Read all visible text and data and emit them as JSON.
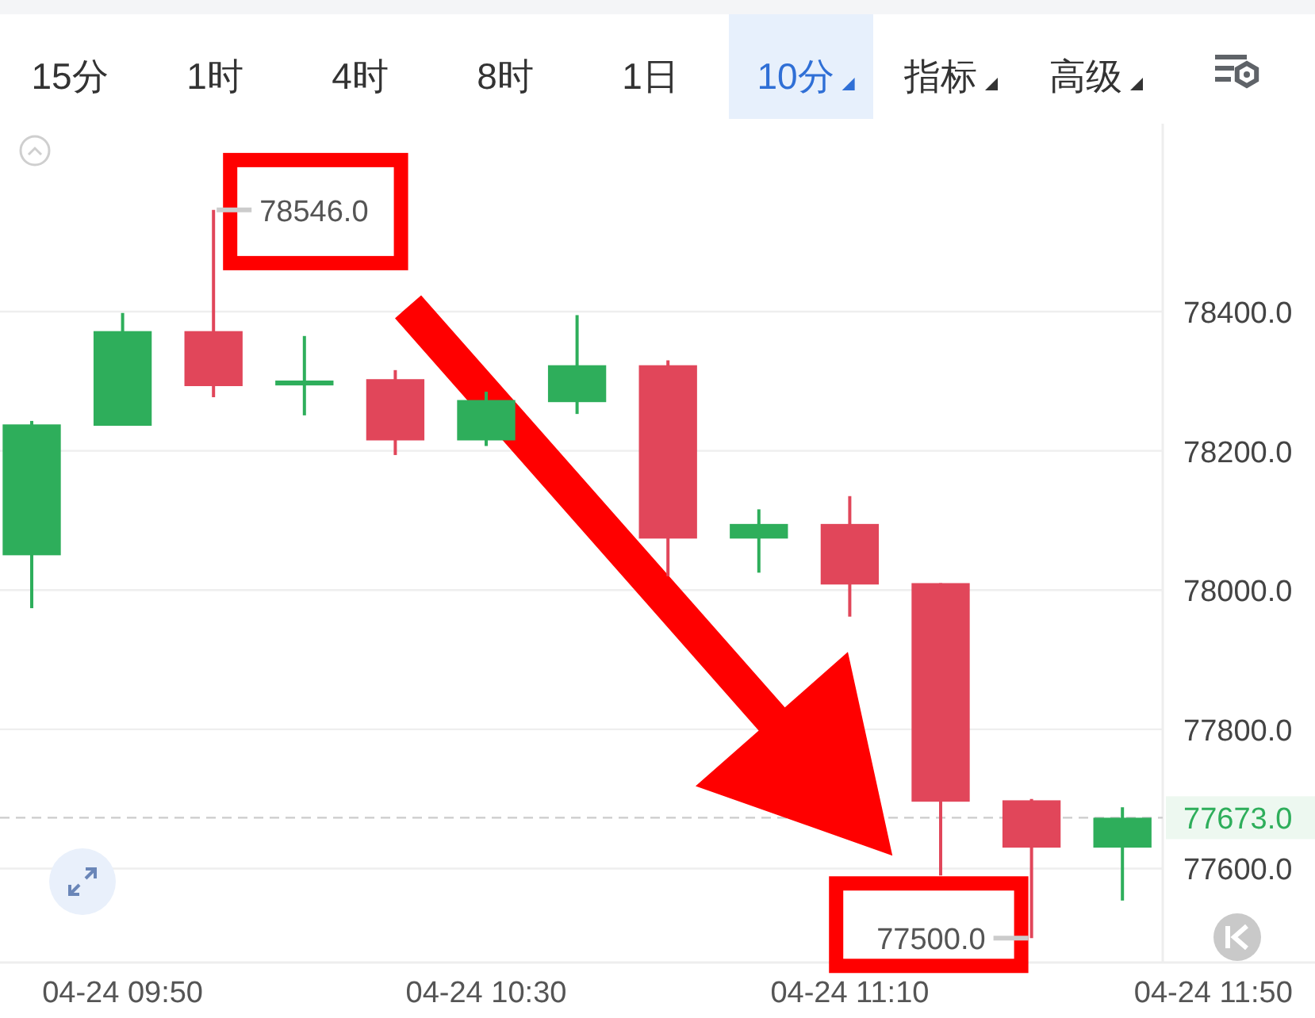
{
  "chart_data": {
    "type": "candlestick",
    "categories": [
      null,
      "04-24 09:50",
      null,
      null,
      null,
      "04-24 10:30",
      null,
      null,
      null,
      "04-24 11:10",
      null,
      null,
      null,
      "04-24 11:50"
    ],
    "ohlc": [
      [
        78050,
        78243,
        77974,
        78238
      ],
      [
        78236,
        78398,
        78236,
        78372
      ],
      [
        78372,
        78546,
        78277,
        78293
      ],
      [
        78294,
        78365,
        78251,
        78301
      ],
      [
        78303,
        78316,
        78194,
        78215
      ],
      [
        78215,
        78285,
        78207,
        78273
      ],
      [
        78270,
        78395,
        78253,
        78323
      ],
      [
        78323,
        78330,
        78020,
        78074
      ],
      [
        78074,
        78116,
        78025,
        78095
      ],
      [
        78095,
        78135,
        77962,
        78008
      ],
      [
        78010,
        78010,
        77590,
        77696
      ],
      [
        77698,
        77700,
        77500,
        77630
      ],
      [
        77630,
        77688,
        77554,
        77673
      ],
      null
    ],
    "colors": [
      "#2eae5b",
      "#2eae5b",
      "#e1465a",
      "#2eae5b",
      "#e1465a",
      "#2eae5b",
      "#2eae5b",
      "#e1465a",
      "#2eae5b",
      "#e1465a",
      "#e1465a",
      "#e1465a",
      "#2eae5b",
      null
    ],
    "ylim": [
      77465,
      78670
    ],
    "yticks": [
      {
        "value": 77600,
        "label": "77600.0"
      },
      {
        "value": 77800,
        "label": "77800.0"
      },
      {
        "value": 78000,
        "label": "78000.0"
      },
      {
        "value": 78200,
        "label": "78200.0"
      },
      {
        "value": 78400,
        "label": "78400.0"
      }
    ],
    "grid": "y",
    "ref_lines": [
      {
        "axis": "y",
        "value": 77673,
        "label": "77673.0",
        "color": "#cccccc",
        "line_style": "dashed"
      }
    ],
    "annotations": [
      "15分",
      "1时",
      "4时",
      "8时",
      "1日",
      "10分",
      "指标",
      "高级",
      "78546.0",
      "77500.0"
    ]
  }
}
